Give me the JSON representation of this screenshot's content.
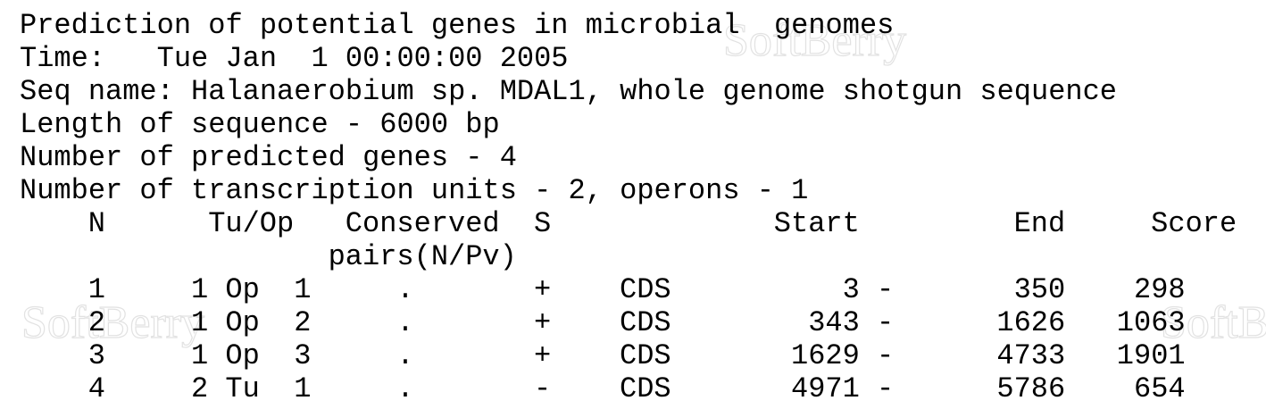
{
  "watermark": "SoftBerry",
  "header": {
    "lines": [
      "Prediction of potential genes in microbial  genomes",
      "Time:   Tue Jan  1 00:00:00 2005",
      "Seq name: Halanaerobium sp. MDAL1, whole genome shotgun sequence",
      "Length of sequence - 6000 bp",
      "Number of predicted genes - 4",
      "Number of transcription units - 2, operons - 1"
    ]
  },
  "table": {
    "columns": [
      "N",
      "Tu/Op",
      "Conserved",
      "S",
      "Start",
      "End",
      "Score"
    ],
    "column_subheader": "pairs(N/Pv)",
    "range_separator": "-",
    "rows": [
      {
        "n": "1",
        "tu_index": "1",
        "tu_type": "Op",
        "tu_order": "1",
        "conserved": ".",
        "strand": "+",
        "feature": "CDS",
        "start": "3",
        "end": "350",
        "score": "298"
      },
      {
        "n": "2",
        "tu_index": "1",
        "tu_type": "Op",
        "tu_order": "2",
        "conserved": ".",
        "strand": "+",
        "feature": "CDS",
        "start": "343",
        "end": "1626",
        "score": "1063"
      },
      {
        "n": "3",
        "tu_index": "1",
        "tu_type": "Op",
        "tu_order": "3",
        "conserved": ".",
        "strand": "+",
        "feature": "CDS",
        "start": "1629",
        "end": "4733",
        "score": "1901"
      },
      {
        "n": "4",
        "tu_index": "2",
        "tu_type": "Tu",
        "tu_order": "1",
        "conserved": ".",
        "strand": "-",
        "feature": "CDS",
        "start": "4971",
        "end": "5786",
        "score": "654"
      }
    ]
  }
}
